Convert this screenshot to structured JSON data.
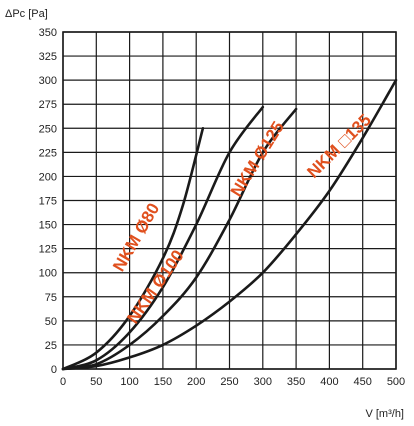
{
  "chart_data": {
    "type": "line",
    "title": "",
    "ylabel": "ΔPc [Pa]",
    "xlabel": "V [m³/h]",
    "xlim": [
      0,
      500
    ],
    "ylim": [
      0,
      350
    ],
    "x_ticks": [
      0,
      50,
      100,
      150,
      200,
      250,
      300,
      350,
      400,
      450,
      500
    ],
    "y_ticks": [
      0,
      25,
      50,
      75,
      100,
      125,
      150,
      175,
      200,
      225,
      250,
      275,
      300,
      325,
      350
    ],
    "grid": true,
    "colors": {
      "curve": "#1a1a1a",
      "grid": "#1a1a1a",
      "label": "#e0501e"
    },
    "series": [
      {
        "name": "NKM Ø80",
        "points": [
          [
            0,
            0
          ],
          [
            50,
            17
          ],
          [
            100,
            55
          ],
          [
            150,
            115
          ],
          [
            180,
            170
          ],
          [
            210,
            250
          ]
        ]
      },
      {
        "name": "NKM Ø100",
        "points": [
          [
            0,
            0
          ],
          [
            50,
            9
          ],
          [
            100,
            38
          ],
          [
            150,
            85
          ],
          [
            200,
            150
          ],
          [
            250,
            225
          ],
          [
            300,
            272
          ]
        ]
      },
      {
        "name": "NKM Ø125",
        "points": [
          [
            0,
            0
          ],
          [
            50,
            5
          ],
          [
            100,
            25
          ],
          [
            150,
            55
          ],
          [
            200,
            95
          ],
          [
            250,
            155
          ],
          [
            300,
            225
          ],
          [
            350,
            270
          ]
        ]
      },
      {
        "name": "NKM □135",
        "points": [
          [
            0,
            0
          ],
          [
            50,
            3
          ],
          [
            100,
            12
          ],
          [
            150,
            25
          ],
          [
            200,
            45
          ],
          [
            250,
            70
          ],
          [
            300,
            100
          ],
          [
            350,
            140
          ],
          [
            400,
            185
          ],
          [
            450,
            240
          ],
          [
            500,
            300
          ]
        ]
      }
    ],
    "labels": [
      {
        "text": "NKM Ø80",
        "series": 0
      },
      {
        "text": "NKM Ø100",
        "series": 1
      },
      {
        "text": "NKM Ø125",
        "series": 2
      },
      {
        "text": "NKM □135",
        "series": 3
      }
    ]
  }
}
